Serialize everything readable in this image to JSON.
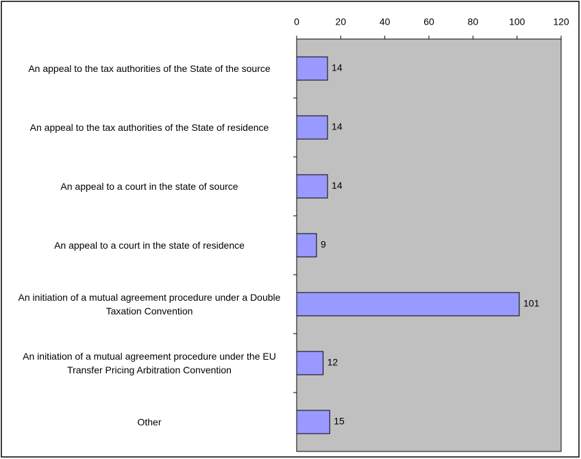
{
  "chart_data": {
    "type": "bar",
    "orientation": "horizontal",
    "categories": [
      "An appeal to the tax authorities of the State of the source",
      "An appeal to the tax authorities of the State of residence",
      "An appeal to a court in the state of source",
      "An appeal to a court in the state of residence",
      "An initiation of a mutual agreement procedure under a Double Taxation Convention",
      "An initiation of a mutual agreement procedure under the EU Transfer Pricing Arbitration Convention",
      "Other"
    ],
    "values": [
      14,
      14,
      14,
      9,
      101,
      12,
      15
    ],
    "color": "#9999ff",
    "xlim": [
      0,
      120
    ],
    "xticks": [
      0,
      20,
      40,
      60,
      80,
      100,
      120
    ],
    "plot_background": "#c0c0c0"
  }
}
